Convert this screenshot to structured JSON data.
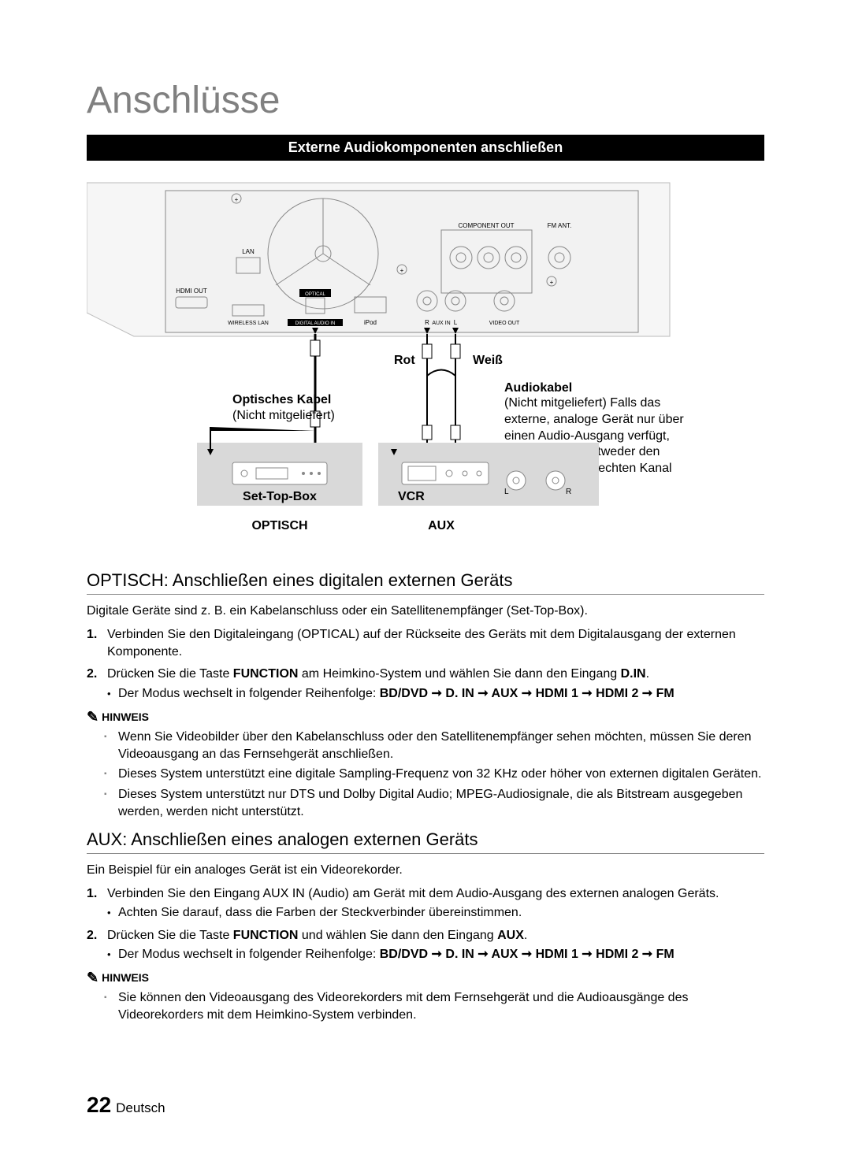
{
  "chapter_title": "Anschlüsse",
  "black_bar": "Externe Audiokomponenten anschließen",
  "diagram": {
    "panel_labels": {
      "component_out": "COMPONENT OUT",
      "fm_ant": "FM ANT.",
      "lan": "LAN",
      "hdmi_out": "HDMI OUT",
      "optical": "OPTICAL",
      "digital_audio_in": "DIGITAL AUDIO IN",
      "wireless_lan": "WIRELESS LAN",
      "ipod": "iPod",
      "aux_in": "AUX IN",
      "aux_r": "R",
      "aux_l": "L",
      "video_out": "VIDEO OUT"
    },
    "labels": {
      "rot": "Rot",
      "weiss": "Weiß",
      "optisches_kabel": "Optisches Kabel",
      "optisches_kabel_sub": "(Nicht mitgeliefert)",
      "audiokabel": "Audiokabel",
      "audiokabel_sub": "(Nicht mitgeliefert)\nFalls das externe, analoge Gerät nur über einen Audio-Ausgang verfügt, schließen Sie entweder den linken oder den rechten Kanal an.",
      "settopbox": "Set-Top-Box",
      "vcr": "VCR",
      "vcr_l": "L",
      "vcr_r": "R",
      "optisch_caps": "OPTISCH",
      "aux_caps": "AUX"
    },
    "colors": {
      "panel_fill": "#f2f2f2",
      "panel_stroke": "#888888",
      "box_fill": "#d9d9d9",
      "line": "#000000",
      "text": "#000000"
    }
  },
  "section_optisch": {
    "heading": "OPTISCH: Anschließen eines digitalen externen Geräts",
    "intro": "Digitale Geräte sind z. B. ein Kabelanschluss oder ein Satellitenempfänger (Set-Top-Box).",
    "steps": [
      "Verbinden Sie den Digitaleingang (OPTICAL) auf der Rückseite des Geräts mit dem Digitalausgang der externen Komponente.",
      "Drücken Sie die Taste <b>FUNCTION</b> am Heimkino-System und wählen Sie dann den Eingang <b>D.IN</b>."
    ],
    "step2_bullet": "Der Modus wechselt in folgender Reihenfolge: <b>BD/DVD ➞ D. IN ➞ AUX ➞ HDMI 1 ➞ HDMI 2 ➞ FM</b>",
    "note_label": "HINWEIS",
    "notes": [
      "Wenn Sie Videobilder über den Kabelanschluss oder den Satellitenempfänger sehen möchten, müssen Sie deren Videoausgang an das Fernsehgerät anschließen.",
      "Dieses System unterstützt eine digitale Sampling-Frequenz von 32 KHz oder höher von externen digitalen Geräten.",
      "Dieses System unterstützt nur DTS und Dolby Digital Audio; MPEG-Audiosignale, die als Bitstream ausgegeben werden, werden nicht unterstützt."
    ]
  },
  "section_aux": {
    "heading": "AUX: Anschließen eines analogen externen Geräts",
    "intro": "Ein Beispiel für ein analoges Gerät ist ein Videorekorder.",
    "steps": [
      "Verbinden Sie den Eingang AUX IN (Audio) am Gerät mit dem Audio-Ausgang des externen analogen Geräts.",
      "Drücken Sie die Taste <b>FUNCTION</b> und wählen Sie dann den Eingang <b>AUX</b>."
    ],
    "step1_bullet": "Achten Sie darauf, dass die Farben der Steckverbinder übereinstimmen.",
    "step2_bullet": "Der Modus wechselt in folgender Reihenfolge: <b>BD/DVD ➞ D. IN ➞ AUX ➞ HDMI 1 ➞ HDMI 2 ➞ FM</b>",
    "note_label": "HINWEIS",
    "notes": [
      "Sie können den Videoausgang des Videorekorders mit dem Fernsehgerät und die Audioausgänge des Videorekorders mit dem Heimkino-System verbinden."
    ]
  },
  "footer": {
    "page_number": "22",
    "lang": "Deutsch"
  }
}
